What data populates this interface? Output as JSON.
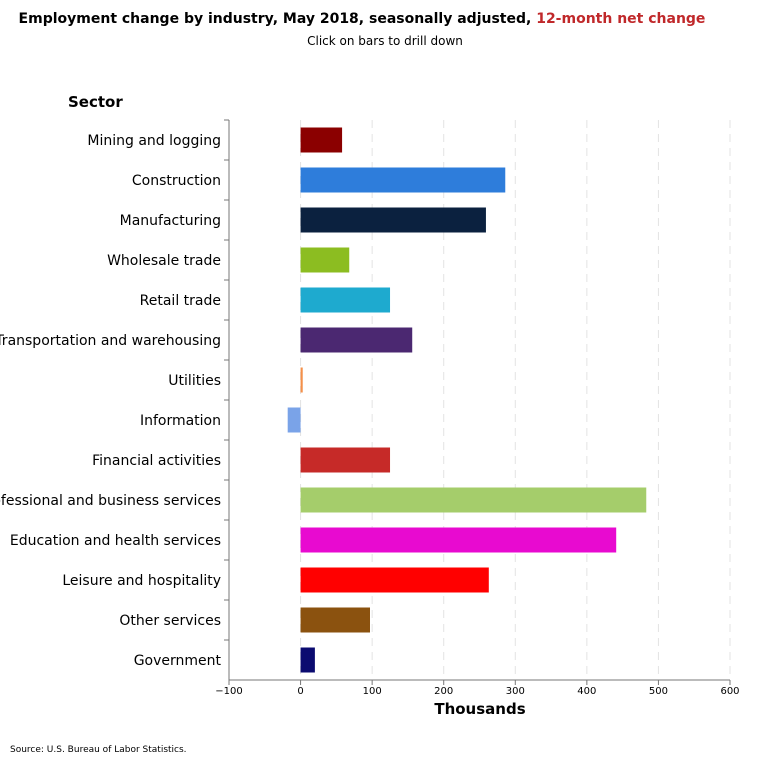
{
  "title": {
    "main": "Employment change by industry, May 2018, seasonally adjusted,",
    "highlight": "12-month net change"
  },
  "subtitle": "Click on bars to drill down",
  "source": "Source: U.S. Bureau of Labor Statistics.",
  "chart_data": {
    "type": "bar",
    "orientation": "horizontal",
    "ylabel": "Sector",
    "xlabel": "Thousands",
    "xlim": [
      -100,
      600
    ],
    "xticks": [
      -100,
      0,
      100,
      200,
      300,
      400,
      500,
      600
    ],
    "grid": "vertical dashed",
    "categories": [
      "Mining and logging",
      "Construction",
      "Manufacturing",
      "Wholesale trade",
      "Retail trade",
      "Transportation and warehousing",
      "Utilities",
      "Information",
      "Financial activities",
      "Professional and business services",
      "Education and health services",
      "Leisure and hospitality",
      "Other services",
      "Government"
    ],
    "values": [
      58,
      286,
      259,
      68,
      125,
      156,
      3,
      -18,
      125,
      483,
      441,
      263,
      97,
      20
    ],
    "colors": [
      "#8b0000",
      "#2e7ddb",
      "#0b213f",
      "#8cbd21",
      "#1eaacf",
      "#4b2871",
      "#f4904a",
      "#7aa3e8",
      "#c62a28",
      "#a5cd6b",
      "#e80ad0",
      "#ff0000",
      "#8b520f",
      "#0b0b70"
    ]
  }
}
